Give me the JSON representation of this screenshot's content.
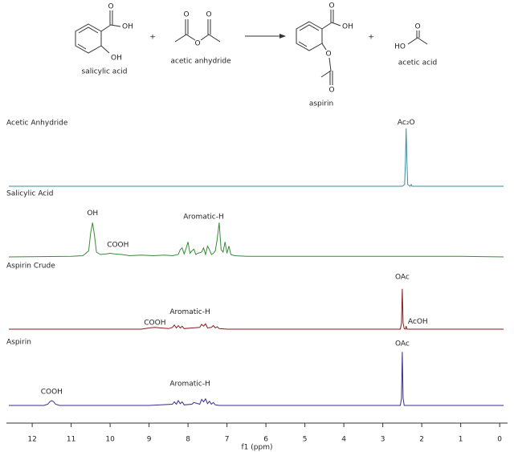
{
  "scheme": {
    "molecules": [
      {
        "name": "salicylic acid",
        "atom_labels": [
          "O",
          "OH",
          "OH"
        ]
      },
      {
        "name": "acetic anhydride",
        "atom_labels": [
          "O",
          "O",
          "O"
        ]
      },
      {
        "name": "aspirin",
        "atom_labels": [
          "O",
          "OH",
          "O",
          "O"
        ]
      },
      {
        "name": "acetic acid",
        "atom_labels": [
          "O",
          "HO"
        ]
      }
    ],
    "plus": "+"
  },
  "chart_data": {
    "type": "line",
    "xlabel": "f1 (ppm)",
    "xlim": [
      12.6,
      -0.1
    ],
    "xticks": [
      12,
      11,
      10,
      9,
      8,
      7,
      6,
      5,
      4,
      3,
      2,
      1,
      0
    ],
    "ylim": [
      0,
      100
    ],
    "series": [
      {
        "name": "Acetic Anhydride",
        "color": "#3c8c9c",
        "x": [
          12.6,
          2.5,
          2.44,
          2.42,
          2.4,
          2.38,
          2.36,
          2.3,
          2.27,
          2.25,
          -0.1
        ],
        "values": [
          0,
          0,
          3,
          40,
          96,
          40,
          3,
          0,
          3,
          0,
          0
        ],
        "annotations": [
          {
            "text": "Ac₂O",
            "x": 2.4,
            "y": 106
          }
        ]
      },
      {
        "name": "Salicylic Acid",
        "color": "#3a8a3a",
        "x": [
          12.6,
          11.0,
          10.7,
          10.55,
          10.5,
          10.45,
          10.4,
          10.35,
          10.25,
          10.1,
          10.0,
          9.9,
          9.7,
          9.5,
          9.2,
          8.9,
          8.6,
          8.4,
          8.25,
          8.2,
          8.15,
          8.1,
          8.05,
          8.0,
          7.95,
          7.9,
          7.85,
          7.8,
          7.75,
          7.65,
          7.6,
          7.55,
          7.5,
          7.45,
          7.4,
          7.35,
          7.3,
          7.25,
          7.2,
          7.15,
          7.1,
          7.05,
          7.0,
          6.95,
          6.9,
          6.8,
          6.5,
          6,
          5,
          4,
          3,
          2,
          1,
          -0.1
        ],
        "values": [
          0,
          1,
          2,
          10,
          40,
          57,
          35,
          8,
          4,
          5,
          6,
          5,
          4,
          2,
          3,
          2,
          3,
          2,
          4,
          12,
          15,
          5,
          14,
          25,
          6,
          10,
          13,
          4,
          6,
          8,
          15,
          4,
          18,
          12,
          4,
          6,
          10,
          30,
          57,
          12,
          8,
          25,
          6,
          18,
          4,
          2,
          1,
          1,
          1,
          1,
          1,
          1,
          1,
          0
        ],
        "annotations": [
          {
            "text": "OH",
            "x": 10.45,
            "y": 73
          },
          {
            "text": "COOH",
            "x": 9.8,
            "y": 20
          },
          {
            "text": "Aromatic-H",
            "x": 7.6,
            "y": 67
          }
        ]
      },
      {
        "name": "Aspirin Crude",
        "color": "#8b1a1a",
        "x": [
          12.6,
          9.2,
          9.0,
          8.85,
          8.7,
          8.5,
          8.4,
          8.35,
          8.3,
          8.25,
          8.2,
          8.15,
          8.1,
          7.9,
          7.7,
          7.65,
          7.6,
          7.55,
          7.5,
          7.4,
          7.35,
          7.3,
          7.25,
          7.2,
          7.0,
          3.0,
          2.55,
          2.52,
          2.5,
          2.48,
          2.45,
          2.42,
          2.4,
          2.38,
          2.3,
          -0.1
        ],
        "values": [
          0,
          0,
          2,
          3,
          2,
          1,
          3,
          7,
          2,
          6,
          2,
          5,
          1,
          2,
          3,
          8,
          5,
          9,
          2,
          3,
          6,
          2,
          4,
          1,
          0,
          0,
          0,
          10,
          67,
          10,
          1,
          0,
          5,
          0,
          0,
          0
        ],
        "annotations": [
          {
            "text": "OAc",
            "x": 2.5,
            "y": 87
          },
          {
            "text": "Aromatic-H",
            "x": 7.95,
            "y": 29
          },
          {
            "text": "COOH",
            "x": 8.85,
            "y": 11
          },
          {
            "text": "AcOH",
            "x": 2.1,
            "y": 13
          }
        ]
      },
      {
        "name": "Aspirin",
        "color": "#3b2a8c",
        "x": [
          12.6,
          11.7,
          11.6,
          11.55,
          11.5,
          11.45,
          11.4,
          11.3,
          9,
          8.4,
          8.35,
          8.3,
          8.25,
          8.2,
          8.15,
          8.1,
          7.9,
          7.85,
          7.7,
          7.65,
          7.6,
          7.55,
          7.5,
          7.45,
          7.4,
          7.35,
          7.3,
          7.2,
          3.0,
          2.55,
          2.52,
          2.5,
          2.48,
          2.45,
          -0.1
        ],
        "values": [
          0,
          0,
          2,
          6,
          8,
          6,
          2,
          0,
          0,
          2,
          6,
          2,
          8,
          3,
          6,
          1,
          2,
          5,
          2,
          10,
          6,
          11,
          3,
          7,
          2,
          5,
          1,
          0,
          0,
          0,
          12,
          89,
          12,
          0,
          0
        ],
        "annotations": [
          {
            "text": "COOH",
            "x": 11.5,
            "y": 23
          },
          {
            "text": "Aromatic-H",
            "x": 7.95,
            "y": 36
          },
          {
            "text": "OAc",
            "x": 2.5,
            "y": 103
          }
        ]
      }
    ]
  }
}
